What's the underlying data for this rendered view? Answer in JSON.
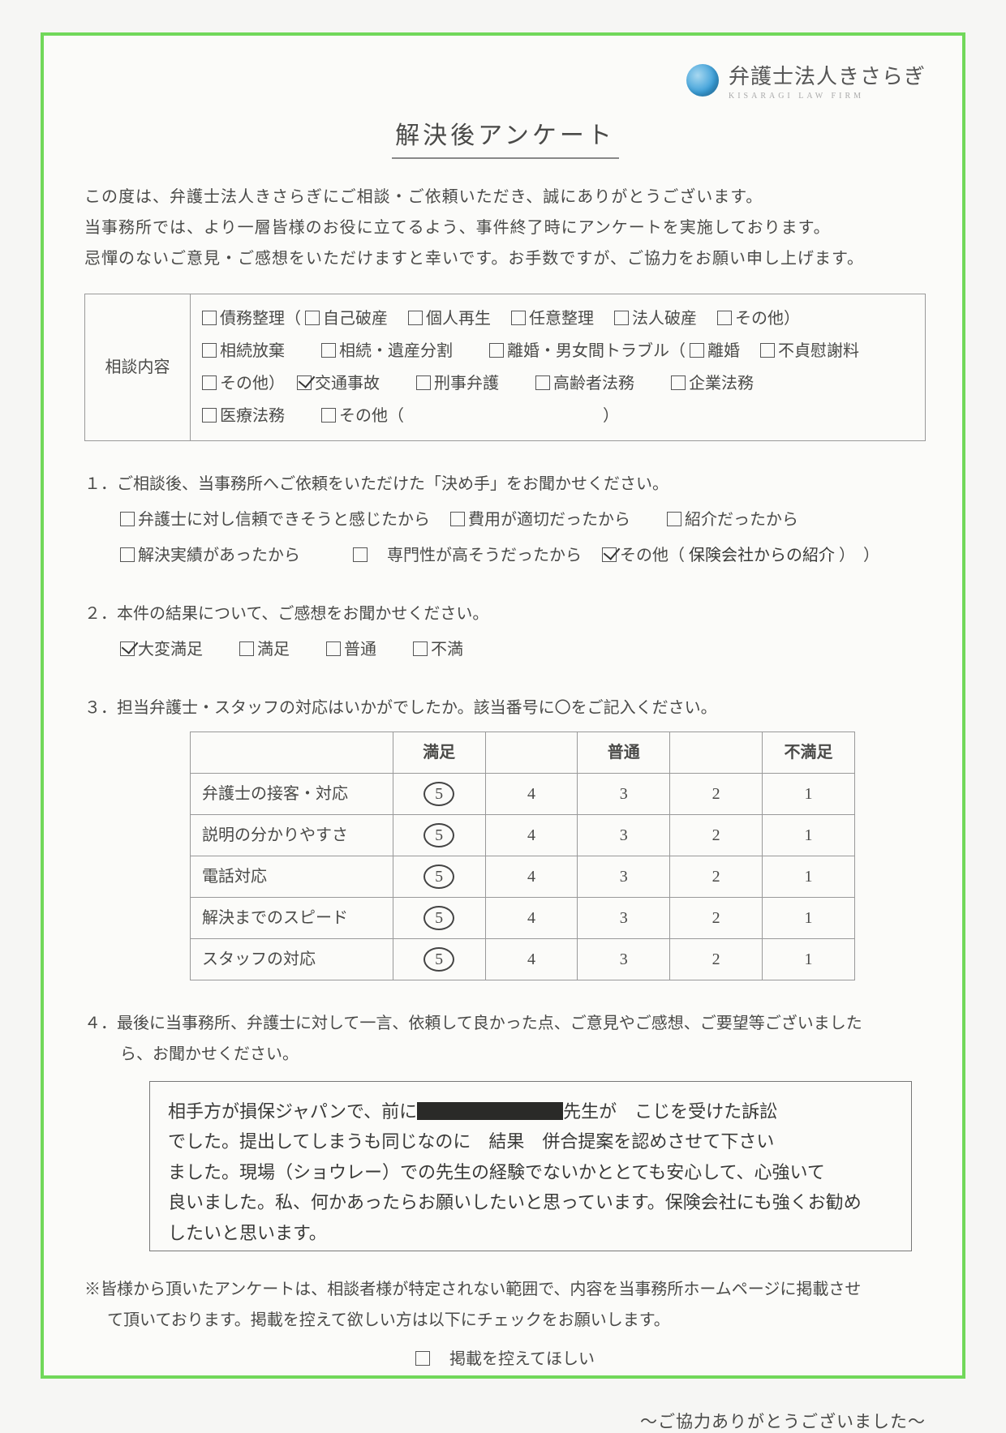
{
  "brand": {
    "name": "弁護士法人きさらぎ",
    "sub": "KISARAGI LAW FIRM"
  },
  "title": "解決後アンケート",
  "intro": {
    "l1": "この度は、弁護士法人きさらぎにご相談・ご依頼いただき、誠にありがとうございます。",
    "l2": "当事務所では、より一層皆様のお役に立てるよう、事件終了時にアンケートを実施しております。",
    "l3": "忌憚のないご意見・ご感想をいただけますと幸いです。お手数ですが、ご協力をお願い申し上げます。"
  },
  "consult": {
    "label": "相談内容",
    "row1": {
      "a": "債務整理（",
      "b": "自己破産",
      "c": "個人再生",
      "d": "任意整理",
      "e": "法人破産",
      "f": "その他）"
    },
    "row2": {
      "a": "相続放棄",
      "b": "相続・遺産分割",
      "c": "離婚・男女間トラブル（",
      "d": "離婚",
      "e": "不貞慰謝料"
    },
    "row3": {
      "a": "その他）",
      "b": "交通事故",
      "c": "刑事弁護",
      "d": "高齢者法務",
      "e": "企業法務"
    },
    "row4": {
      "a": "医療法務",
      "b": "その他（",
      "c": "）"
    },
    "checked": "交通事故"
  },
  "q1": {
    "prompt": "１．ご相談後、当事務所へご依頼をいただけた「決め手」をお聞かせください。",
    "opts": {
      "a": "弁護士に対し信頼できそうと感じたから",
      "b": "費用が適切だったから",
      "c": "紹介だったから",
      "d": "解決実績があったから",
      "e": "専門性が高そうだったから",
      "f": "その他（",
      "hand": "保険会社からの紹介",
      "close": "）　）"
    },
    "checked": "その他"
  },
  "q2": {
    "prompt": "２．本件の結果について、ご感想をお聞かせください。",
    "opts": {
      "a": "大変満足",
      "b": "満足",
      "c": "普通",
      "d": "不満"
    },
    "checked": "大変満足"
  },
  "q3": {
    "prompt": "３．担当弁護士・スタッフの対応はいかがでしたか。該当番号に〇をご記入ください。",
    "headers": {
      "h1": "満足",
      "h2": "普通",
      "h3": "不満足"
    },
    "rows": [
      {
        "label": "弁護士の接客・対応",
        "vals": [
          "5",
          "4",
          "3",
          "2",
          "1"
        ],
        "circle": 0
      },
      {
        "label": "説明の分かりやすさ",
        "vals": [
          "5",
          "4",
          "3",
          "2",
          "1"
        ],
        "circle": 0
      },
      {
        "label": "電話対応",
        "vals": [
          "5",
          "4",
          "3",
          "2",
          "1"
        ],
        "circle": 0
      },
      {
        "label": "解決までのスピード",
        "vals": [
          "5",
          "4",
          "3",
          "2",
          "1"
        ],
        "circle": 0
      },
      {
        "label": "スタッフの対応",
        "vals": [
          "5",
          "4",
          "3",
          "2",
          "1"
        ],
        "circle": 0
      }
    ]
  },
  "q4": {
    "prompt1": "４．最後に当事務所、弁護士に対して一言、依頼して良かった点、ご意見やご感想、ご要望等ございました",
    "prompt2": "ら、お聞かせください。",
    "hand_lines": [
      "相手方が損保ジャパンで、前に［　　　　　　　］先生が　こじを受けた訴訟",
      "でした。提出してしまうも同じなのに　結果　併合提案を認めさせて下さい",
      "ました。現場（ショウレー）での先生の経験でないかととても安心して、心強いて",
      "良いました。私、何かあったらお願いしたいと思っています。保険会社にも強くお勧め",
      "したいと思います。"
    ]
  },
  "footnote": {
    "l1": "※皆様から頂いたアンケートは、相談者様が特定されない範囲で、内容を当事務所ホームページに掲載させ",
    "l2": "て頂いております。掲載を控えて欲しい方は以下にチェックをお願いします。",
    "opt": "掲載を控えてほしい"
  },
  "thanks": "～ご協力ありがとうございました～"
}
